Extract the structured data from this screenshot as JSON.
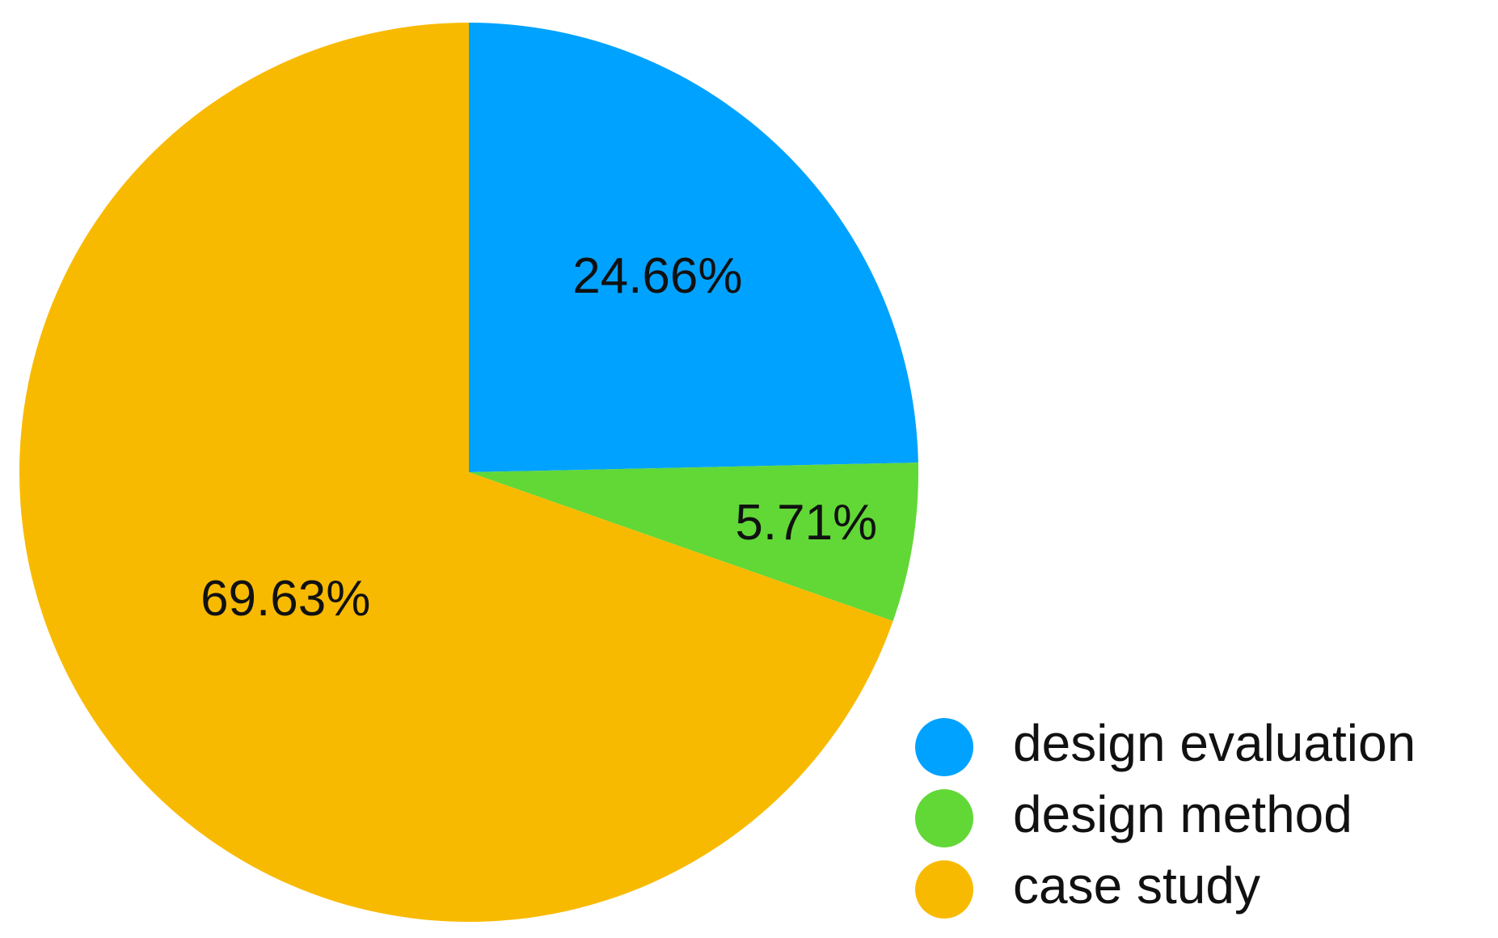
{
  "chart_data": {
    "type": "pie",
    "categories": [
      "design evaluation",
      "design method",
      "case study"
    ],
    "values": [
      24.66,
      5.71,
      69.63
    ],
    "value_labels": [
      "24.66%",
      "5.71%",
      "69.63%"
    ],
    "colors": [
      "#00a2ff",
      "#61d836",
      "#f8ba00"
    ],
    "legend": "bottom-right"
  }
}
